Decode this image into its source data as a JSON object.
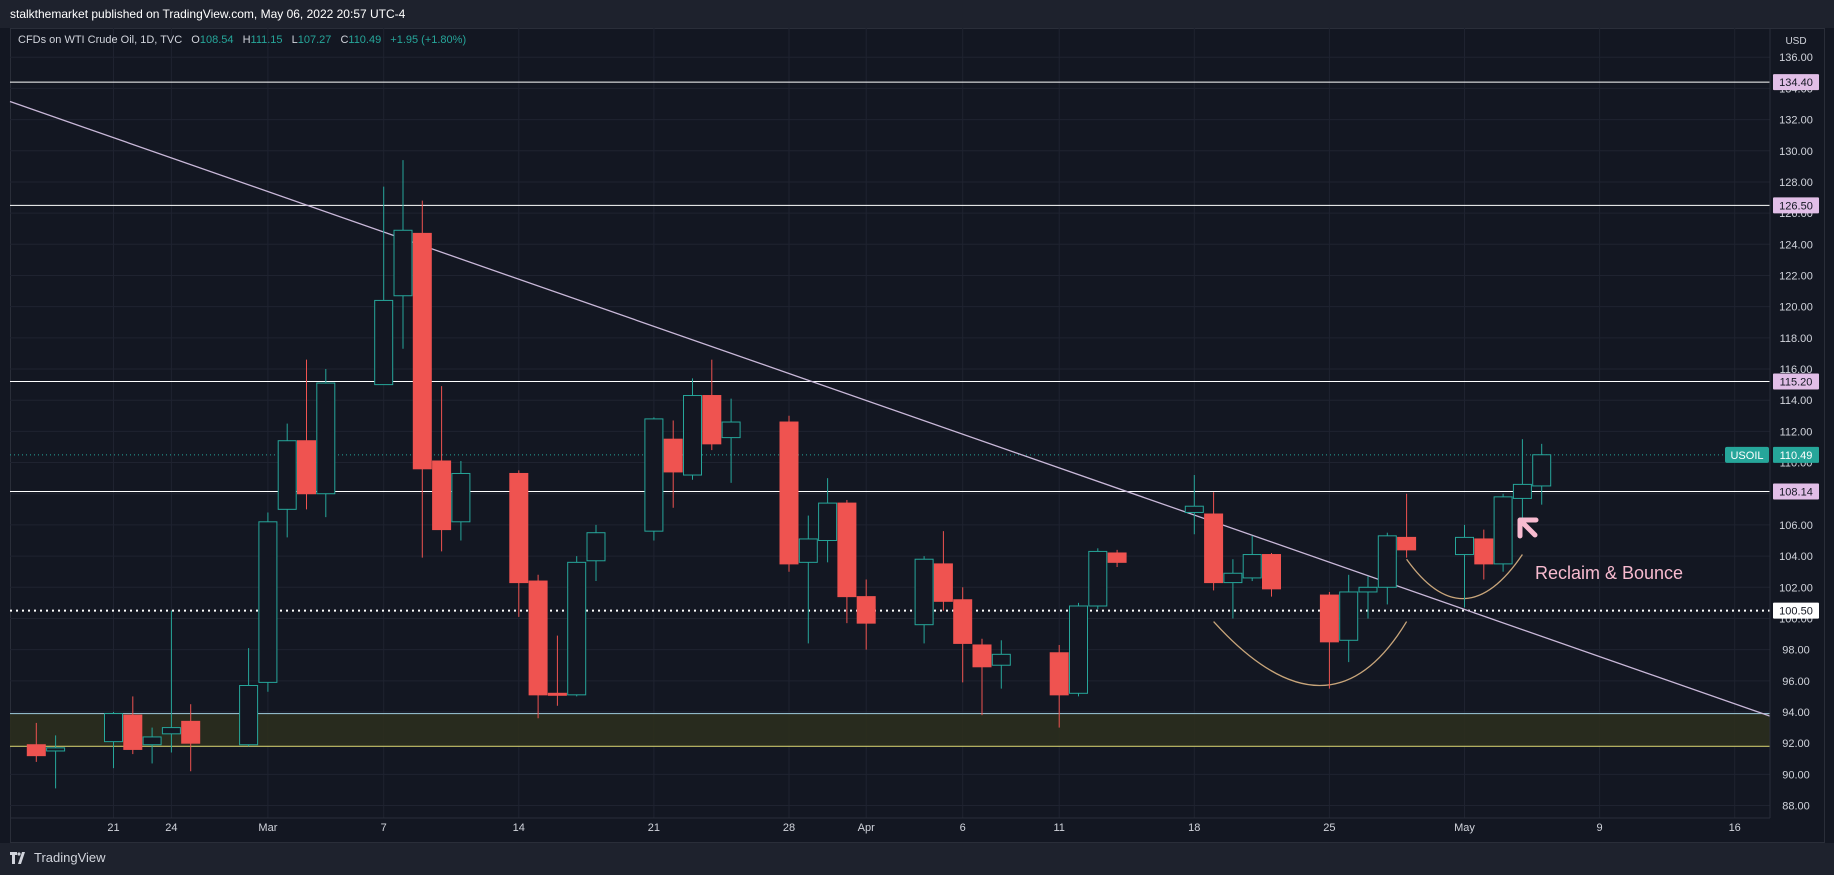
{
  "header": {
    "publish_text": "stalkthemarket published on TradingView.com, May 06, 2022 20:57 UTC-4"
  },
  "legend": {
    "symbol": "CFDs on WTI Crude Oil, 1D, TVC",
    "open_label": "O",
    "open_value": "108.54",
    "high_label": "H",
    "high_value": "111.15",
    "low_label": "L",
    "low_value": "107.27",
    "close_label": "C",
    "close_value": "110.49",
    "change": "+1.95 (+1.80%)"
  },
  "footer": {
    "brand": "TradingView"
  },
  "colors": {
    "background": "#131722",
    "up": "#26a69a",
    "down": "#ef5350",
    "level_line": "#ffffff",
    "level_label_bg": "#e1bee7",
    "trendline": "#c9b8d9",
    "zone_fill": "#2b2e1e",
    "zone_border_top": "#8fb8c8",
    "zone_border_bottom": "#c7c36a",
    "arc": "#c8a57a",
    "annotation": "#f8bbd0",
    "price_badge": "#26a69a"
  },
  "chart_data": {
    "type": "candlestick",
    "currency_label": "USD",
    "y_ticks": [
      "136.00",
      "134.00",
      "132.00",
      "130.00",
      "128.00",
      "126.00",
      "124.00",
      "122.00",
      "120.00",
      "118.00",
      "116.00",
      "114.00",
      "112.00",
      "110.00",
      "108.00",
      "106.00",
      "104.00",
      "102.00",
      "100.00",
      "98.00",
      "96.00",
      "94.00",
      "92.00",
      "90.00",
      "88.00"
    ],
    "ylim": [
      87,
      137
    ],
    "x_ticks": [
      "21",
      "24",
      "Mar",
      "7",
      "14",
      "21",
      "28",
      "Apr",
      "6",
      "11",
      "18",
      "25",
      "May",
      "9",
      "16"
    ],
    "candles": [
      {
        "d": "Feb 17",
        "o": 91.9,
        "h": 93.3,
        "l": 90.8,
        "c": 91.2
      },
      {
        "d": "Feb 18",
        "o": 91.5,
        "h": 92.5,
        "l": 89.1,
        "c": 91.7
      },
      {
        "d": "Feb 21",
        "o": 92.1,
        "h": 94.0,
        "l": 90.4,
        "c": 93.9
      },
      {
        "d": "Feb 22",
        "o": 93.8,
        "h": 95.0,
        "l": 91.3,
        "c": 91.6
      },
      {
        "d": "Feb 23",
        "o": 91.9,
        "h": 93.0,
        "l": 90.7,
        "c": 92.4
      },
      {
        "d": "Feb 24",
        "o": 92.6,
        "h": 100.5,
        "l": 91.4,
        "c": 93.0
      },
      {
        "d": "Feb 25",
        "o": 93.4,
        "h": 94.5,
        "l": 90.2,
        "c": 92.0
      },
      {
        "d": "Feb 28",
        "o": 91.9,
        "h": 98.1,
        "l": 91.8,
        "c": 95.7
      },
      {
        "d": "Mar 1",
        "o": 95.9,
        "h": 106.8,
        "l": 95.3,
        "c": 106.2
      },
      {
        "d": "Mar 2",
        "o": 107.0,
        "h": 112.5,
        "l": 105.2,
        "c": 111.4
      },
      {
        "d": "Mar 3",
        "o": 111.4,
        "h": 116.6,
        "l": 107.0,
        "c": 108.0
      },
      {
        "d": "Mar 4",
        "o": 108.0,
        "h": 116.0,
        "l": 106.5,
        "c": 115.1
      },
      {
        "d": "Mar 7",
        "o": 115.0,
        "h": 127.7,
        "l": 115.0,
        "c": 120.4
      },
      {
        "d": "Mar 8",
        "o": 120.7,
        "h": 129.4,
        "l": 117.3,
        "c": 124.9
      },
      {
        "d": "Mar 9",
        "o": 124.7,
        "h": 126.8,
        "l": 103.9,
        "c": 109.6
      },
      {
        "d": "Mar 10",
        "o": 110.1,
        "h": 114.9,
        "l": 104.3,
        "c": 105.7
      },
      {
        "d": "Mar 11",
        "o": 106.2,
        "h": 110.1,
        "l": 105.0,
        "c": 109.3
      },
      {
        "d": "Mar 14",
        "o": 109.3,
        "h": 109.5,
        "l": 100.1,
        "c": 102.3
      },
      {
        "d": "Mar 15",
        "o": 102.4,
        "h": 102.8,
        "l": 93.6,
        "c": 95.1
      },
      {
        "d": "Mar 16",
        "o": 95.2,
        "h": 98.9,
        "l": 94.4,
        "c": 95.1
      },
      {
        "d": "Mar 17",
        "o": 95.1,
        "h": 104.0,
        "l": 95.0,
        "c": 103.6
      },
      {
        "d": "Mar 18",
        "o": 103.7,
        "h": 106.0,
        "l": 102.4,
        "c": 105.5
      },
      {
        "d": "Mar 21",
        "o": 105.6,
        "h": 112.9,
        "l": 105.0,
        "c": 112.8
      },
      {
        "d": "Mar 22",
        "o": 111.5,
        "h": 112.7,
        "l": 107.1,
        "c": 109.4
      },
      {
        "d": "Mar 23",
        "o": 109.2,
        "h": 115.4,
        "l": 108.9,
        "c": 114.3
      },
      {
        "d": "Mar 24",
        "o": 114.3,
        "h": 116.6,
        "l": 110.8,
        "c": 111.2
      },
      {
        "d": "Mar 25",
        "o": 111.6,
        "h": 114.1,
        "l": 108.7,
        "c": 112.6
      },
      {
        "d": "Mar 28",
        "o": 112.6,
        "h": 113.0,
        "l": 103.0,
        "c": 103.5
      },
      {
        "d": "Mar 29",
        "o": 103.6,
        "h": 106.6,
        "l": 98.4,
        "c": 105.1
      },
      {
        "d": "Mar 30",
        "o": 105.0,
        "h": 109.0,
        "l": 103.6,
        "c": 107.4
      },
      {
        "d": "Mar 31",
        "o": 107.4,
        "h": 107.6,
        "l": 99.7,
        "c": 101.4
      },
      {
        "d": "Apr 1",
        "o": 101.4,
        "h": 102.5,
        "l": 98.0,
        "c": 99.7
      },
      {
        "d": "Apr 4",
        "o": 99.6,
        "h": 104.0,
        "l": 98.4,
        "c": 103.8
      },
      {
        "d": "Apr 5",
        "o": 103.5,
        "h": 105.6,
        "l": 100.5,
        "c": 101.1
      },
      {
        "d": "Apr 6",
        "o": 101.2,
        "h": 102.0,
        "l": 95.9,
        "c": 98.4
      },
      {
        "d": "Apr 7",
        "o": 98.3,
        "h": 98.7,
        "l": 93.8,
        "c": 96.9
      },
      {
        "d": "Apr 8",
        "o": 97.0,
        "h": 98.6,
        "l": 95.5,
        "c": 97.7
      },
      {
        "d": "Apr 11",
        "o": 97.8,
        "h": 98.3,
        "l": 93.0,
        "c": 95.1
      },
      {
        "d": "Apr 12",
        "o": 95.2,
        "h": 101.0,
        "l": 95.0,
        "c": 100.8
      },
      {
        "d": "Apr 13",
        "o": 100.8,
        "h": 104.5,
        "l": 100.6,
        "c": 104.3
      },
      {
        "d": "Apr 14",
        "o": 104.2,
        "h": 104.4,
        "l": 103.3,
        "c": 103.6
      },
      {
        "d": "Apr 18",
        "o": 106.8,
        "h": 109.2,
        "l": 105.4,
        "c": 107.2
      },
      {
        "d": "Apr 19",
        "o": 106.7,
        "h": 108.1,
        "l": 101.8,
        "c": 102.3
      },
      {
        "d": "Apr 20",
        "o": 102.3,
        "h": 103.8,
        "l": 100.0,
        "c": 102.9
      },
      {
        "d": "Apr 21",
        "o": 102.6,
        "h": 105.3,
        "l": 102.4,
        "c": 104.1
      },
      {
        "d": "Apr 22",
        "o": 104.1,
        "h": 104.2,
        "l": 101.4,
        "c": 101.9
      },
      {
        "d": "Apr 25",
        "o": 101.5,
        "h": 101.7,
        "l": 95.5,
        "c": 98.5
      },
      {
        "d": "Apr 26",
        "o": 98.6,
        "h": 102.8,
        "l": 97.2,
        "c": 101.7
      },
      {
        "d": "Apr 27",
        "o": 101.7,
        "h": 102.7,
        "l": 100.0,
        "c": 102.0
      },
      {
        "d": "Apr 28",
        "o": 102.0,
        "h": 105.5,
        "l": 100.9,
        "c": 105.3
      },
      {
        "d": "Apr 29",
        "o": 105.2,
        "h": 108.0,
        "l": 103.9,
        "c": 104.4
      },
      {
        "d": "May 2",
        "o": 104.1,
        "h": 106.0,
        "l": 100.7,
        "c": 105.2
      },
      {
        "d": "May 3",
        "o": 105.1,
        "h": 105.7,
        "l": 102.5,
        "c": 103.5
      },
      {
        "d": "May 4",
        "o": 103.5,
        "h": 108.0,
        "l": 103.0,
        "c": 107.8
      },
      {
        "d": "May 5",
        "o": 107.7,
        "h": 111.5,
        "l": 106.2,
        "c": 108.6
      },
      {
        "d": "May 6",
        "o": 108.5,
        "h": 111.2,
        "l": 107.3,
        "c": 110.5
      }
    ],
    "levels": [
      {
        "price": 134.4,
        "label": "134.40"
      },
      {
        "price": 126.5,
        "label": "126.50"
      },
      {
        "price": 115.2,
        "label": "115.20"
      },
      {
        "price": 108.14,
        "label": "108.14"
      }
    ],
    "dotted_level": {
      "price": 100.5,
      "label": "100.50"
    },
    "last_price": {
      "price": 110.49,
      "symbol": "USOIL",
      "label": "110.49"
    },
    "zone": {
      "top": 93.9,
      "bottom": 91.8
    },
    "trendline": {
      "from_date": "Feb 16",
      "from_price": 133.0,
      "to_date": "May 20",
      "to_price": 92.8
    },
    "annotation": "Reclaim & Bounce"
  }
}
